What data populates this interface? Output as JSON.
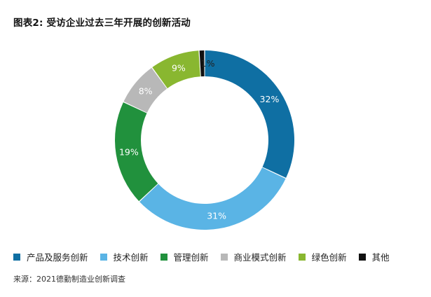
{
  "title": "图表2: 受访企业过去三年开展的创新活动",
  "source": "来源：2021德勤制造业创新调查",
  "chart_data": {
    "type": "pie",
    "style": "donut",
    "title": "图表2: 受访企业过去三年开展的创新活动",
    "legend_position": "bottom",
    "categories": [
      "产品及服务创新",
      "技术创新",
      "管理创新",
      "商业模式创新",
      "绿色创新",
      "其他"
    ],
    "values": [
      32,
      31,
      19,
      8,
      9,
      1
    ],
    "labels": [
      "32%",
      "31%",
      "19%",
      "8%",
      "9%",
      "1%"
    ],
    "colors": [
      "#0f6fa3",
      "#5ab4e5",
      "#21913d",
      "#b8b8b8",
      "#89b730",
      "#111111"
    ]
  }
}
